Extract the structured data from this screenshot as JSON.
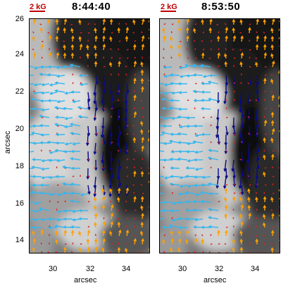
{
  "panels": [
    {
      "id": "left",
      "time": "8:44:40",
      "scale_label": "2 kG"
    },
    {
      "id": "right",
      "time": "8:53:50",
      "scale_label": "2 kG"
    }
  ],
  "y_ticks": [
    "26",
    "24",
    "22",
    "20",
    "18",
    "16",
    "14"
  ],
  "x_ticks_left": [
    "30",
    "32",
    "34"
  ],
  "x_ticks_right": [
    "30",
    "32",
    "34"
  ],
  "y_axis_label": "arcsec",
  "x_axis_label": "arcsec",
  "colors": {
    "red": "#dd2020",
    "orange": "#ffa000",
    "cyan": "#35b6ee",
    "navy": "#0a0a8a"
  }
}
